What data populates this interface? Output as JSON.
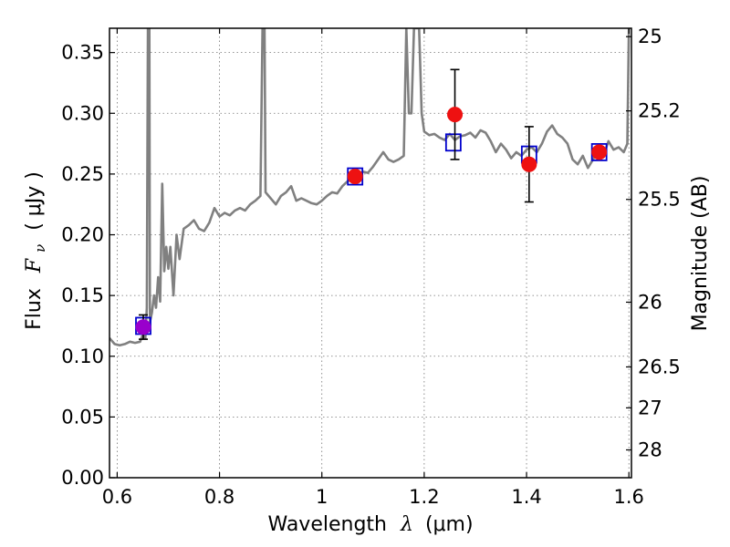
{
  "chart_data": {
    "type": "line",
    "x_axis": {
      "label_prefix": "Wavelength",
      "label_symbol": "λ",
      "label_unit": "(μm)",
      "range": [
        0.585,
        1.605
      ],
      "ticks": [
        0.6,
        0.8,
        1.0,
        1.2,
        1.4,
        1.6
      ],
      "tick_labels": [
        "0.6",
        "0.8",
        "1",
        "1.2",
        "1.4",
        "1.6"
      ]
    },
    "y_axis": {
      "label_prefix": "Flux",
      "label_symbol": "F",
      "label_sub": "ν",
      "label_unit": "( μJy )",
      "range": [
        0.0,
        0.37
      ],
      "ticks": [
        0.0,
        0.05,
        0.1,
        0.15,
        0.2,
        0.25,
        0.3,
        0.35
      ],
      "tick_labels": [
        "0.00",
        "0.05",
        "0.10",
        "0.15",
        "0.20",
        "0.25",
        "0.30",
        "0.35"
      ]
    },
    "y2_axis": {
      "label": "Magnitude (AB)",
      "ticks": [
        {
          "label": "25",
          "flux": 0.3631
        },
        {
          "label": "25.2",
          "flux": 0.302
        },
        {
          "label": "25.5",
          "flux": 0.2291
        },
        {
          "label": "26",
          "flux": 0.1445
        },
        {
          "label": "26.5",
          "flux": 0.0912
        },
        {
          "label": "27",
          "flux": 0.0575
        },
        {
          "label": "28",
          "flux": 0.0229
        }
      ]
    },
    "grid": true,
    "series": [
      {
        "kind": "spectrum",
        "color": "#808080",
        "points": [
          [
            0.585,
            0.115
          ],
          [
            0.595,
            0.11
          ],
          [
            0.605,
            0.109
          ],
          [
            0.615,
            0.11
          ],
          [
            0.625,
            0.112
          ],
          [
            0.635,
            0.111
          ],
          [
            0.645,
            0.112
          ],
          [
            0.65,
            0.118
          ],
          [
            0.655,
            0.115
          ],
          [
            0.658,
            0.14
          ],
          [
            0.66,
            0.37
          ],
          [
            0.663,
            0.37
          ],
          [
            0.664,
            0.128
          ],
          [
            0.668,
            0.136
          ],
          [
            0.672,
            0.15
          ],
          [
            0.676,
            0.14
          ],
          [
            0.68,
            0.165
          ],
          [
            0.684,
            0.145
          ],
          [
            0.688,
            0.242
          ],
          [
            0.692,
            0.17
          ],
          [
            0.696,
            0.19
          ],
          [
            0.7,
            0.172
          ],
          [
            0.704,
            0.19
          ],
          [
            0.71,
            0.15
          ],
          [
            0.716,
            0.2
          ],
          [
            0.722,
            0.18
          ],
          [
            0.73,
            0.205
          ],
          [
            0.74,
            0.208
          ],
          [
            0.75,
            0.212
          ],
          [
            0.76,
            0.205
          ],
          [
            0.77,
            0.203
          ],
          [
            0.78,
            0.21
          ],
          [
            0.79,
            0.222
          ],
          [
            0.8,
            0.215
          ],
          [
            0.81,
            0.218
          ],
          [
            0.82,
            0.216
          ],
          [
            0.83,
            0.22
          ],
          [
            0.84,
            0.222
          ],
          [
            0.85,
            0.22
          ],
          [
            0.86,
            0.225
          ],
          [
            0.87,
            0.228
          ],
          [
            0.88,
            0.232
          ],
          [
            0.884,
            0.37
          ],
          [
            0.888,
            0.37
          ],
          [
            0.89,
            0.235
          ],
          [
            0.9,
            0.23
          ],
          [
            0.91,
            0.225
          ],
          [
            0.92,
            0.232
          ],
          [
            0.93,
            0.235
          ],
          [
            0.94,
            0.24
          ],
          [
            0.95,
            0.228
          ],
          [
            0.96,
            0.23
          ],
          [
            0.97,
            0.228
          ],
          [
            0.98,
            0.226
          ],
          [
            0.99,
            0.225
          ],
          [
            1.0,
            0.228
          ],
          [
            1.01,
            0.232
          ],
          [
            1.02,
            0.235
          ],
          [
            1.03,
            0.234
          ],
          [
            1.04,
            0.24
          ],
          [
            1.05,
            0.244
          ],
          [
            1.06,
            0.246
          ],
          [
            1.07,
            0.249
          ],
          [
            1.08,
            0.252
          ],
          [
            1.09,
            0.251
          ],
          [
            1.1,
            0.256
          ],
          [
            1.11,
            0.262
          ],
          [
            1.12,
            0.268
          ],
          [
            1.13,
            0.262
          ],
          [
            1.14,
            0.26
          ],
          [
            1.15,
            0.262
          ],
          [
            1.16,
            0.265
          ],
          [
            1.165,
            0.37
          ],
          [
            1.17,
            0.3
          ],
          [
            1.175,
            0.3
          ],
          [
            1.18,
            0.37
          ],
          [
            1.19,
            0.37
          ],
          [
            1.195,
            0.3
          ],
          [
            1.2,
            0.285
          ],
          [
            1.21,
            0.282
          ],
          [
            1.22,
            0.283
          ],
          [
            1.23,
            0.28
          ],
          [
            1.24,
            0.278
          ],
          [
            1.25,
            0.283
          ],
          [
            1.26,
            0.278
          ],
          [
            1.27,
            0.281
          ],
          [
            1.28,
            0.282
          ],
          [
            1.29,
            0.284
          ],
          [
            1.3,
            0.28
          ],
          [
            1.31,
            0.286
          ],
          [
            1.32,
            0.284
          ],
          [
            1.33,
            0.277
          ],
          [
            1.34,
            0.268
          ],
          [
            1.35,
            0.275
          ],
          [
            1.36,
            0.27
          ],
          [
            1.37,
            0.263
          ],
          [
            1.38,
            0.268
          ],
          [
            1.39,
            0.265
          ],
          [
            1.4,
            0.27
          ],
          [
            1.41,
            0.272
          ],
          [
            1.42,
            0.268
          ],
          [
            1.43,
            0.275
          ],
          [
            1.44,
            0.285
          ],
          [
            1.45,
            0.29
          ],
          [
            1.46,
            0.283
          ],
          [
            1.47,
            0.28
          ],
          [
            1.48,
            0.275
          ],
          [
            1.49,
            0.262
          ],
          [
            1.5,
            0.258
          ],
          [
            1.51,
            0.265
          ],
          [
            1.52,
            0.255
          ],
          [
            1.53,
            0.262
          ],
          [
            1.54,
            0.27
          ],
          [
            1.55,
            0.265
          ],
          [
            1.56,
            0.277
          ],
          [
            1.57,
            0.27
          ],
          [
            1.58,
            0.272
          ],
          [
            1.59,
            0.268
          ],
          [
            1.597,
            0.275
          ],
          [
            1.6,
            0.37
          ]
        ]
      },
      {
        "kind": "model-photometry",
        "marker": "square",
        "color": "#0000cc",
        "points": [
          [
            0.651,
            0.125
          ],
          [
            1.065,
            0.248
          ],
          [
            1.257,
            0.276
          ],
          [
            1.405,
            0.266
          ],
          [
            1.542,
            0.268
          ]
        ]
      },
      {
        "kind": "observed-photometry",
        "marker": "circle",
        "points": [
          {
            "x": 0.651,
            "y": 0.124,
            "err": 0.01,
            "color": "#9900cc"
          },
          {
            "x": 1.065,
            "y": 0.248,
            "err": null,
            "color": "#ee1111"
          },
          {
            "x": 1.26,
            "y": 0.299,
            "err": 0.037,
            "color": "#ee1111"
          },
          {
            "x": 1.405,
            "y": 0.258,
            "err": 0.031,
            "color": "#ee1111"
          },
          {
            "x": 1.542,
            "y": 0.268,
            "err": null,
            "color": "#ee1111"
          }
        ]
      }
    ]
  }
}
